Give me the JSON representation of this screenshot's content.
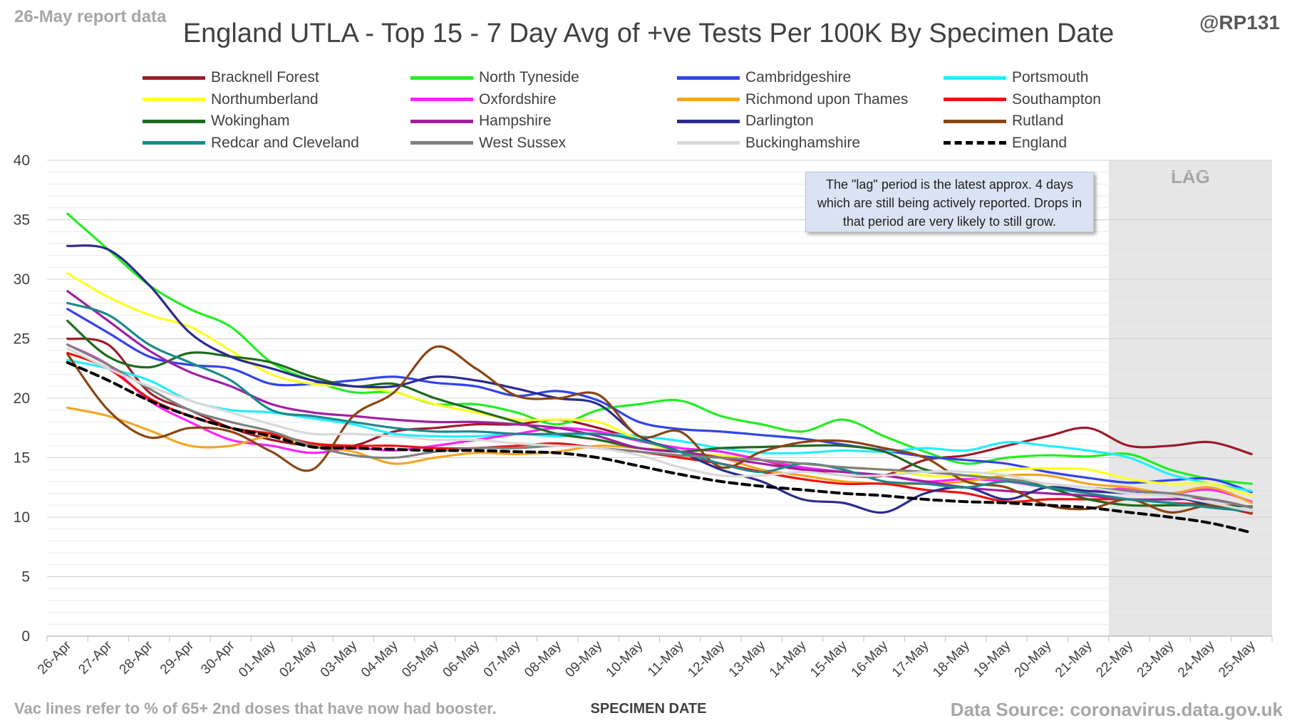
{
  "report_label": "26-May report data",
  "handle": "@RP131",
  "footer_left": "Vac lines refer to % of 65+ 2nd doses that have now had booster.",
  "footer_right": "Data Source: coronavirus.data.gov.uk",
  "note": "The \"lag\" period is the latest approx. 4 days which are still being actively reported. Drops in that period are very likely to still grow.",
  "chart_data": {
    "type": "line",
    "title": "England UTLA - Top 15 - 7 Day Avg of +ve Tests Per 100K By Specimen Date",
    "xlabel": "SPECIMEN DATE",
    "ylabel": "",
    "ylim": [
      0,
      40
    ],
    "yticks": [
      0,
      5,
      10,
      15,
      20,
      25,
      30,
      35,
      40
    ],
    "grid": true,
    "legend_position": "top",
    "lag_label": "LAG",
    "lag_start": "21-May",
    "x": [
      "26-Apr",
      "27-Apr",
      "28-Apr",
      "29-Apr",
      "30-Apr",
      "01-May",
      "02-May",
      "03-May",
      "04-May",
      "05-May",
      "06-May",
      "07-May",
      "08-May",
      "09-May",
      "10-May",
      "11-May",
      "12-May",
      "13-May",
      "14-May",
      "15-May",
      "16-May",
      "17-May",
      "18-May",
      "19-May",
      "20-May",
      "21-May",
      "22-May",
      "23-May",
      "24-May",
      "25-May"
    ],
    "series": [
      {
        "name": "Bracknell Forest",
        "color": "#9b1c2a",
        "dash": false,
        "values": [
          25.0,
          24.5,
          20.5,
          19.0,
          17.5,
          16.5,
          16.0,
          16.0,
          17.2,
          17.5,
          17.8,
          17.8,
          18.2,
          17.5,
          16.5,
          15.8,
          15.5,
          14.8,
          14.0,
          13.5,
          13.5,
          14.8,
          15.2,
          16.0,
          16.8,
          17.5,
          16.0,
          16.0,
          16.3,
          15.3
        ]
      },
      {
        "name": "North Tyneside",
        "color": "#22ee22",
        "dash": false,
        "values": [
          35.5,
          32.5,
          29.5,
          27.5,
          26.0,
          23.0,
          21.5,
          20.5,
          20.5,
          19.5,
          19.5,
          18.8,
          17.8,
          19.0,
          19.5,
          19.8,
          18.5,
          17.8,
          17.2,
          18.2,
          16.8,
          15.5,
          14.5,
          15.0,
          15.2,
          15.1,
          15.3,
          14.0,
          13.2,
          12.8
        ]
      },
      {
        "name": "Cambridgeshire",
        "color": "#3344e6",
        "dash": false,
        "values": [
          27.5,
          25.5,
          23.5,
          22.8,
          22.5,
          21.2,
          21.2,
          21.5,
          21.8,
          21.3,
          21.0,
          20.2,
          20.6,
          19.8,
          18.0,
          17.4,
          17.2,
          16.9,
          16.6,
          16.1,
          15.6,
          15.1,
          14.8,
          14.5,
          13.8,
          13.3,
          12.9,
          13.1,
          13.2,
          12.1
        ]
      },
      {
        "name": "Portsmouth",
        "color": "#22eeff",
        "dash": false,
        "values": [
          23.2,
          22.5,
          21.5,
          19.8,
          19.0,
          18.8,
          18.3,
          17.8,
          17.0,
          16.8,
          16.8,
          17.0,
          16.8,
          17.0,
          16.8,
          16.4,
          15.8,
          15.4,
          15.4,
          15.6,
          15.5,
          15.8,
          15.6,
          16.3,
          16.0,
          15.6,
          15.0,
          13.6,
          12.8,
          12.2
        ]
      },
      {
        "name": "Northumberland",
        "color": "#ffff22",
        "dash": false,
        "values": [
          30.5,
          28.5,
          27.0,
          26.0,
          24.0,
          22.0,
          21.2,
          21.0,
          20.5,
          19.5,
          18.8,
          18.2,
          18.2,
          18.0,
          16.5,
          15.5,
          15.2,
          14.8,
          14.5,
          14.2,
          14.0,
          13.5,
          13.5,
          14.0,
          14.1,
          14.0,
          13.2,
          12.8,
          12.8,
          11.8
        ]
      },
      {
        "name": "Oxfordshire",
        "color": "#ff22ff",
        "dash": false,
        "values": [
          24.5,
          22.8,
          19.8,
          18.0,
          16.5,
          16.0,
          15.4,
          15.8,
          15.6,
          16.0,
          16.5,
          17.0,
          17.5,
          17.2,
          16.4,
          15.8,
          15.5,
          14.8,
          14.2,
          13.8,
          13.5,
          13.0,
          13.2,
          13.0,
          12.5,
          12.2,
          12.4,
          12.0,
          12.3,
          11.3
        ]
      },
      {
        "name": "Richmond upon Thames",
        "color": "#f5a623",
        "dash": false,
        "values": [
          19.2,
          18.5,
          17.3,
          16.0,
          16.0,
          16.8,
          16.0,
          15.5,
          14.5,
          15.0,
          15.4,
          15.3,
          15.5,
          16.0,
          15.8,
          15.5,
          15.0,
          14.0,
          13.5,
          13.0,
          12.8,
          12.8,
          13.0,
          13.5,
          13.5,
          12.8,
          12.5,
          12.0,
          12.5,
          11.2
        ]
      },
      {
        "name": "Southampton",
        "color": "#ee1111",
        "dash": false,
        "values": [
          23.8,
          22.5,
          20.0,
          18.5,
          17.5,
          17.0,
          16.2,
          16.0,
          16.0,
          15.8,
          15.8,
          16.0,
          16.2,
          15.8,
          15.5,
          15.0,
          14.5,
          13.8,
          13.2,
          12.8,
          12.8,
          12.3,
          12.0,
          11.3,
          11.5,
          11.5,
          11.5,
          11.2,
          11.0,
          10.3
        ]
      },
      {
        "name": "Wokingham",
        "color": "#1e6b1e",
        "dash": false,
        "values": [
          26.5,
          23.5,
          22.6,
          23.8,
          23.5,
          23.0,
          21.8,
          21.0,
          21.2,
          20.0,
          19.0,
          18.0,
          17.0,
          16.5,
          15.8,
          15.5,
          15.8,
          15.9,
          16.0,
          16.0,
          15.5,
          14.0,
          13.5,
          13.2,
          12.5,
          11.5,
          11.0,
          11.0,
          11.0,
          10.9
        ]
      },
      {
        "name": "Hampshire",
        "color": "#a020a0",
        "dash": false,
        "values": [
          29.0,
          26.5,
          24.0,
          22.2,
          21.0,
          19.5,
          18.8,
          18.5,
          18.2,
          18.0,
          18.0,
          17.8,
          17.5,
          16.8,
          15.8,
          15.5,
          15.0,
          14.5,
          14.0,
          13.8,
          13.5,
          13.0,
          12.5,
          12.2,
          12.0,
          11.8,
          11.5,
          11.5,
          11.5,
          10.8
        ]
      },
      {
        "name": "Darlington",
        "color": "#2b2b8f",
        "dash": false,
        "values": [
          32.8,
          32.5,
          29.5,
          25.5,
          23.5,
          22.5,
          21.5,
          21.0,
          21.0,
          21.8,
          21.5,
          20.8,
          20.0,
          19.5,
          16.8,
          15.5,
          14.0,
          13.0,
          11.5,
          11.2,
          10.4,
          12.0,
          12.5,
          11.5,
          12.5,
          12.2,
          12.0,
          11.8,
          11.0,
          10.4
        ]
      },
      {
        "name": "Rutland",
        "color": "#8b4513",
        "dash": false,
        "values": [
          23.7,
          19.0,
          16.7,
          17.5,
          17.2,
          15.5,
          14.0,
          18.5,
          20.5,
          24.3,
          22.5,
          20.2,
          20.0,
          20.3,
          16.8,
          17.2,
          14.2,
          15.5,
          16.3,
          16.4,
          15.8,
          15.0,
          13.0,
          12.5,
          11.0,
          10.7,
          11.5,
          10.4,
          11.0,
          10.4
        ]
      },
      {
        "name": "Redcar and Cleveland",
        "color": "#1a8a8a",
        "dash": false,
        "values": [
          28.0,
          27.0,
          24.5,
          23.0,
          21.5,
          19.0,
          18.5,
          18.0,
          17.5,
          17.2,
          17.2,
          17.0,
          17.0,
          17.0,
          16.5,
          15.5,
          14.5,
          13.8,
          14.5,
          14.0,
          13.0,
          12.8,
          12.5,
          13.0,
          12.5,
          12.0,
          11.5,
          11.2,
          10.8,
          10.5
        ]
      },
      {
        "name": "West Sussex",
        "color": "#808080",
        "dash": false,
        "values": [
          24.5,
          22.8,
          20.8,
          19.0,
          18.0,
          17.2,
          16.0,
          15.2,
          15.0,
          15.5,
          15.8,
          15.8,
          16.0,
          15.8,
          15.5,
          15.2,
          15.0,
          14.8,
          14.5,
          14.2,
          14.0,
          13.8,
          13.5,
          13.2,
          12.8,
          12.5,
          12.2,
          12.0,
          11.5,
          10.8
        ]
      },
      {
        "name": "Buckinghamshire",
        "color": "#d9d9d9",
        "dash": false,
        "values": [
          24.2,
          22.5,
          21.0,
          19.8,
          18.8,
          17.8,
          17.0,
          17.0,
          16.8,
          16.5,
          16.5,
          16.2,
          16.0,
          15.8,
          15.2,
          14.2,
          13.5,
          13.5,
          13.8,
          13.5,
          13.5,
          13.8,
          13.8,
          13.5,
          12.8,
          12.5,
          12.0,
          11.8,
          11.2,
          10.5
        ]
      },
      {
        "name": "England",
        "color": "#000000",
        "dash": true,
        "values": [
          23.0,
          21.5,
          19.8,
          18.5,
          17.5,
          16.8,
          15.9,
          15.8,
          15.7,
          15.6,
          15.6,
          15.5,
          15.4,
          15.0,
          14.3,
          13.6,
          13.0,
          12.6,
          12.3,
          12.0,
          11.8,
          11.5,
          11.3,
          11.2,
          11.0,
          10.8,
          10.4,
          10.0,
          9.5,
          8.7
        ]
      }
    ]
  }
}
